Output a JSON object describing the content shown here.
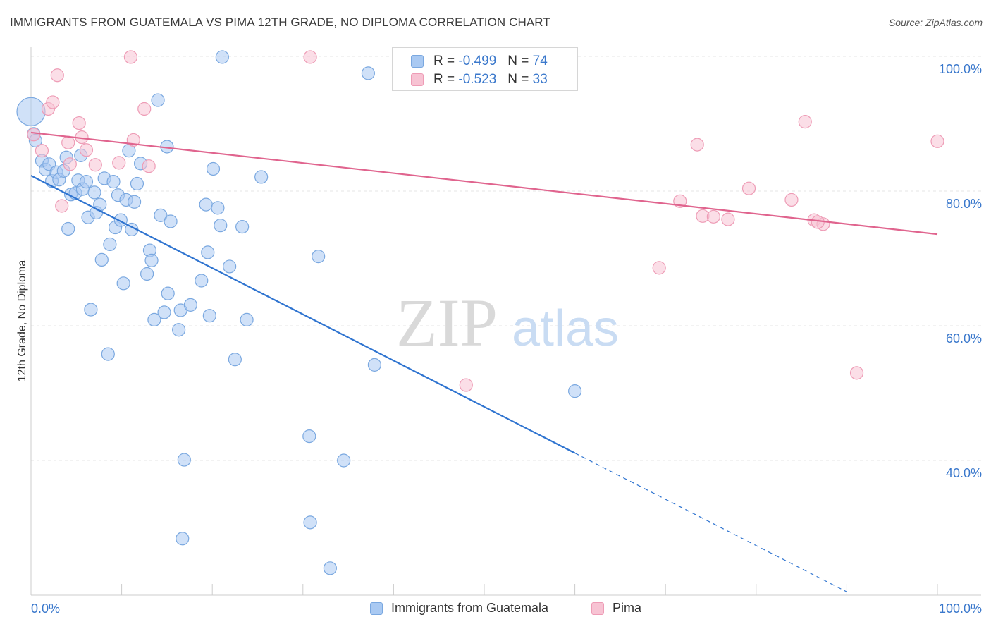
{
  "header": {
    "title": "IMMIGRANTS FROM GUATEMALA VS PIMA 12TH GRADE, NO DIPLOMA CORRELATION CHART",
    "source": "Source: ZipAtlas.com"
  },
  "watermark": {
    "zip": "ZIP",
    "atlas": "atlas"
  },
  "legend": {
    "r_label": "R =",
    "n_label": "N =",
    "rows": [
      {
        "r": "-0.499",
        "n": "74",
        "color": "#a9c9f2",
        "border": "#7aa8e0"
      },
      {
        "r": "-0.523",
        "n": "33",
        "color": "#f7c3d3",
        "border": "#ee9cb6"
      }
    ]
  },
  "colors": {
    "blue_fill": "#a9c9f2",
    "blue_stroke": "#7aa8e0",
    "blue_line": "#2f74d0",
    "pink_fill": "#f7c3d3",
    "pink_stroke": "#ee9cb6",
    "pink_line": "#e0648e",
    "tick_text": "#3a78cc",
    "grid": "#e4e4e4"
  },
  "chart_data": {
    "type": "scatter",
    "title": "IMMIGRANTS FROM GUATEMALA VS PIMA 12TH GRADE, NO DIPLOMA CORRELATION CHART",
    "xlabel": "",
    "ylabel": "12th Grade, No Diploma",
    "xlim": [
      0,
      100
    ],
    "ylim": [
      20,
      102
    ],
    "x_tick_labels": [
      "0.0%",
      "100.0%"
    ],
    "y_ticks": [
      40,
      60,
      80,
      100
    ],
    "y_tick_labels": [
      "40.0%",
      "60.0%",
      "80.0%",
      "100.0%"
    ],
    "grid": true,
    "legend_position": "top-center",
    "series": [
      {
        "name": "Immigrants from Guatemala",
        "color": "#a9c9f2",
        "trend": {
          "x": [
            0,
            60
          ],
          "y": [
            82.3,
            41.1
          ],
          "dashed_to": [
            90,
            20.5
          ]
        },
        "points": [
          {
            "x": 0,
            "y": 91.8,
            "size": "large"
          },
          {
            "x": 0.3,
            "y": 88.5
          },
          {
            "x": 0.5,
            "y": 87.5
          },
          {
            "x": 1.2,
            "y": 84.5
          },
          {
            "x": 1.6,
            "y": 83.2
          },
          {
            "x": 2,
            "y": 84
          },
          {
            "x": 2.3,
            "y": 81.5
          },
          {
            "x": 2.8,
            "y": 82.8
          },
          {
            "x": 3.1,
            "y": 81.7
          },
          {
            "x": 3.6,
            "y": 83
          },
          {
            "x": 3.9,
            "y": 85
          },
          {
            "x": 4.1,
            "y": 74.4
          },
          {
            "x": 4.4,
            "y": 79.5
          },
          {
            "x": 4.9,
            "y": 79.7
          },
          {
            "x": 5.2,
            "y": 81.6
          },
          {
            "x": 5.5,
            "y": 85.3
          },
          {
            "x": 5.7,
            "y": 80.3
          },
          {
            "x": 6.1,
            "y": 81.4
          },
          {
            "x": 6.3,
            "y": 76.1
          },
          {
            "x": 6.6,
            "y": 62.4
          },
          {
            "x": 7,
            "y": 79.8
          },
          {
            "x": 7.2,
            "y": 76.8
          },
          {
            "x": 7.6,
            "y": 78
          },
          {
            "x": 7.8,
            "y": 69.8
          },
          {
            "x": 8.1,
            "y": 81.9
          },
          {
            "x": 8.5,
            "y": 55.8
          },
          {
            "x": 8.7,
            "y": 72.1
          },
          {
            "x": 9.1,
            "y": 81.4
          },
          {
            "x": 9.3,
            "y": 74.6
          },
          {
            "x": 9.6,
            "y": 79.4
          },
          {
            "x": 9.9,
            "y": 75.7
          },
          {
            "x": 10.2,
            "y": 66.3
          },
          {
            "x": 10.5,
            "y": 78.7
          },
          {
            "x": 10.8,
            "y": 86
          },
          {
            "x": 11.1,
            "y": 74.3
          },
          {
            "x": 11.4,
            "y": 78.4
          },
          {
            "x": 11.7,
            "y": 81.1
          },
          {
            "x": 12.1,
            "y": 84.1
          },
          {
            "x": 12.8,
            "y": 67.7
          },
          {
            "x": 13.1,
            "y": 71.2
          },
          {
            "x": 13.3,
            "y": 69.7
          },
          {
            "x": 13.6,
            "y": 60.9
          },
          {
            "x": 14,
            "y": 93.5
          },
          {
            "x": 14.3,
            "y": 76.4
          },
          {
            "x": 14.7,
            "y": 62
          },
          {
            "x": 15,
            "y": 86.6
          },
          {
            "x": 15.1,
            "y": 64.8
          },
          {
            "x": 15.4,
            "y": 75.5
          },
          {
            "x": 16.3,
            "y": 59.4
          },
          {
            "x": 16.5,
            "y": 62.3
          },
          {
            "x": 16.9,
            "y": 40.1
          },
          {
            "x": 16.7,
            "y": 28.4
          },
          {
            "x": 17.6,
            "y": 63.1
          },
          {
            "x": 18.8,
            "y": 66.7
          },
          {
            "x": 19.3,
            "y": 78
          },
          {
            "x": 19.5,
            "y": 70.9
          },
          {
            "x": 19.7,
            "y": 61.5
          },
          {
            "x": 20.1,
            "y": 83.3
          },
          {
            "x": 20.6,
            "y": 77.5
          },
          {
            "x": 20.9,
            "y": 74.9
          },
          {
            "x": 21.1,
            "y": 99.9
          },
          {
            "x": 21.9,
            "y": 68.8
          },
          {
            "x": 23.3,
            "y": 74.7
          },
          {
            "x": 23.8,
            "y": 60.9
          },
          {
            "x": 25.4,
            "y": 82.1
          },
          {
            "x": 30.7,
            "y": 43.6
          },
          {
            "x": 30.8,
            "y": 30.8
          },
          {
            "x": 31.7,
            "y": 70.3
          },
          {
            "x": 33,
            "y": 24
          },
          {
            "x": 37.2,
            "y": 97.5
          },
          {
            "x": 37.9,
            "y": 54.2
          },
          {
            "x": 60,
            "y": 50.3
          },
          {
            "x": 34.5,
            "y": 40
          },
          {
            "x": 22.5,
            "y": 55
          }
        ]
      },
      {
        "name": "Pima",
        "color": "#f7c3d3",
        "trend": {
          "x": [
            0,
            100
          ],
          "y": [
            88.7,
            73.6
          ]
        },
        "points": [
          {
            "x": 0.3,
            "y": 88.4
          },
          {
            "x": 1.2,
            "y": 86
          },
          {
            "x": 1.9,
            "y": 92.2
          },
          {
            "x": 2.4,
            "y": 93.2
          },
          {
            "x": 2.9,
            "y": 97.2
          },
          {
            "x": 3.4,
            "y": 77.8
          },
          {
            "x": 4.1,
            "y": 87.2
          },
          {
            "x": 4.3,
            "y": 84
          },
          {
            "x": 5.3,
            "y": 90.1
          },
          {
            "x": 5.6,
            "y": 88
          },
          {
            "x": 6.1,
            "y": 86.1
          },
          {
            "x": 7.1,
            "y": 83.9
          },
          {
            "x": 9.7,
            "y": 84.2
          },
          {
            "x": 11,
            "y": 99.9
          },
          {
            "x": 11.3,
            "y": 87.6
          },
          {
            "x": 12.5,
            "y": 92.2
          },
          {
            "x": 13,
            "y": 83.7
          },
          {
            "x": 30.8,
            "y": 99.9
          },
          {
            "x": 48,
            "y": 51.2
          },
          {
            "x": 69.3,
            "y": 68.6
          },
          {
            "x": 71.6,
            "y": 78.5
          },
          {
            "x": 73.5,
            "y": 86.9
          },
          {
            "x": 74.1,
            "y": 76.3
          },
          {
            "x": 75.3,
            "y": 76.2
          },
          {
            "x": 76.9,
            "y": 75.8
          },
          {
            "x": 79.2,
            "y": 80.4
          },
          {
            "x": 83.9,
            "y": 78.7
          },
          {
            "x": 85.4,
            "y": 90.3
          },
          {
            "x": 86.4,
            "y": 75.7
          },
          {
            "x": 87.4,
            "y": 75.1
          },
          {
            "x": 91.1,
            "y": 53
          },
          {
            "x": 100,
            "y": 87.4
          },
          {
            "x": 86.8,
            "y": 75.4
          }
        ]
      }
    ]
  }
}
